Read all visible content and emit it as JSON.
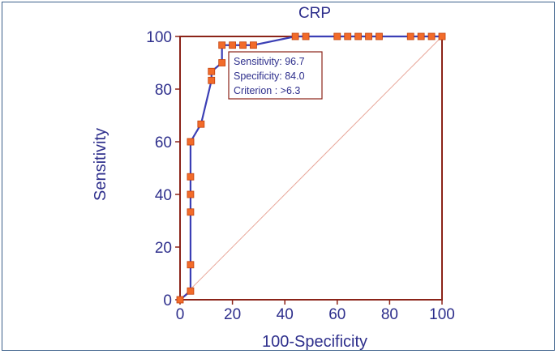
{
  "chart_data": {
    "type": "line",
    "title": "CRP",
    "xlabel": "100-Specificity",
    "ylabel": "Sensitivity",
    "xlim": [
      0,
      100
    ],
    "ylim": [
      0,
      100
    ],
    "xticks": [
      "0",
      "20",
      "40",
      "60",
      "80",
      "100"
    ],
    "yticks": [
      "0",
      "20",
      "40",
      "60",
      "80",
      "100"
    ],
    "grid": false,
    "reference_line": {
      "from": [
        0,
        0
      ],
      "to": [
        100,
        100
      ]
    },
    "series": [
      {
        "x": [
          0,
          4,
          4,
          4,
          4,
          4,
          4,
          4,
          8,
          12,
          12,
          16,
          16,
          20,
          24,
          28,
          44,
          48,
          60,
          64,
          68,
          72,
          76,
          88,
          92,
          96,
          100
        ],
        "y": [
          0,
          3.3,
          13.3,
          33.3,
          40,
          46.7,
          60,
          60,
          66.7,
          83.3,
          86.7,
          90,
          96.7,
          96.7,
          96.7,
          96.7,
          100,
          100,
          100,
          100,
          100,
          100,
          100,
          100,
          100,
          100,
          100
        ]
      }
    ],
    "annotation": {
      "lines": [
        "Sensitivity: 96.7",
        "Specificity: 84.0",
        "Criterion : >6.3"
      ],
      "point": [
        16,
        96.7
      ]
    },
    "colors": {
      "curve": "#3b3fb5",
      "marker": "#f26b2a",
      "marker_edge": "#c2410c",
      "frame": "#8b2318",
      "reference": "#e8a79a",
      "text": "#2e2f8c"
    }
  }
}
